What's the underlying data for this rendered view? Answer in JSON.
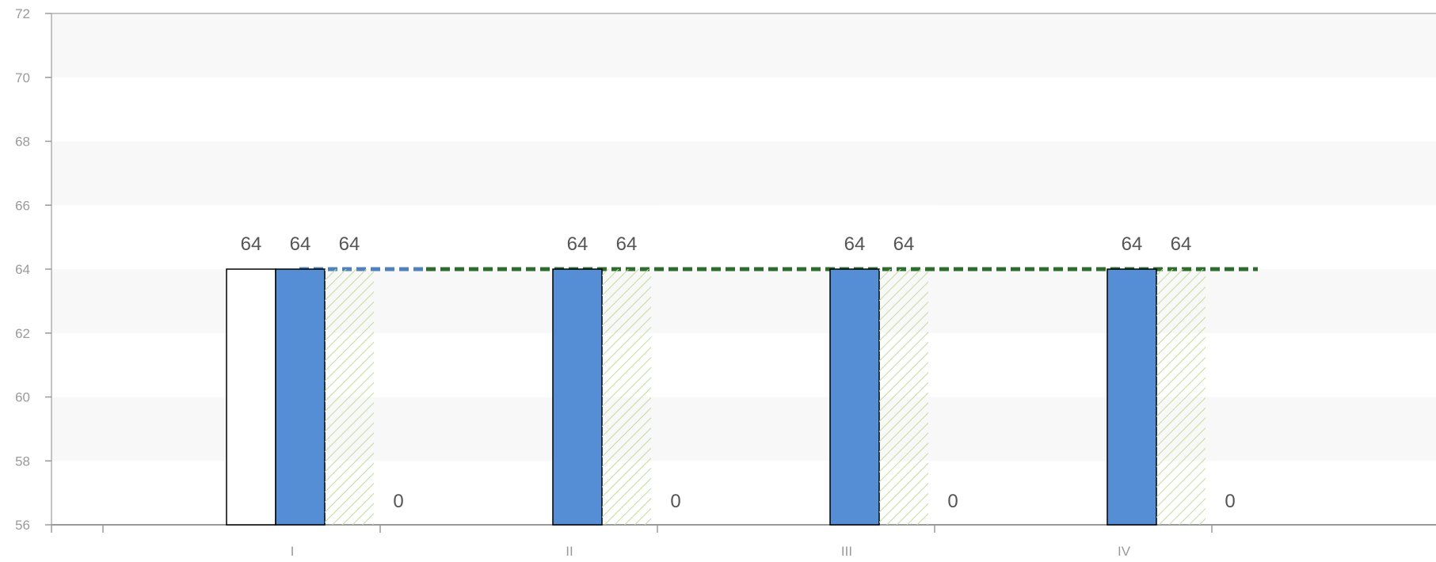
{
  "chart_data": {
    "type": "bar",
    "categories": [
      "I",
      "II",
      "III",
      "IV"
    ],
    "ylim": [
      56,
      72
    ],
    "yticks": [
      56,
      58,
      60,
      62,
      64,
      66,
      68,
      70,
      72
    ],
    "grid": true,
    "legend": "none",
    "series": [
      {
        "values": [
          64,
          null,
          null,
          null
        ],
        "style": "outline",
        "color": "#ffffff",
        "label_values": [
          "64",
          "",
          "",
          ""
        ]
      },
      {
        "values": [
          64,
          64,
          64,
          64
        ],
        "style": "solid",
        "color": "#558ed5",
        "label_values": [
          "64",
          "64",
          "64",
          "64"
        ]
      },
      {
        "values": [
          64,
          64,
          64,
          64
        ],
        "style": "hatched",
        "color": "#c3dc9a",
        "label_values": [
          "64",
          "64",
          "64",
          "64"
        ]
      },
      {
        "values": [
          0,
          0,
          0,
          0
        ],
        "style": "solid",
        "color": "#ffffff",
        "label_values": [
          "0",
          "0",
          "0",
          "0"
        ]
      }
    ],
    "reference_lines": [
      {
        "value": 64,
        "style": "dashed",
        "color": "#4f81bd"
      },
      {
        "value": 64,
        "style": "dashed",
        "color": "#2e6b2e"
      }
    ]
  }
}
